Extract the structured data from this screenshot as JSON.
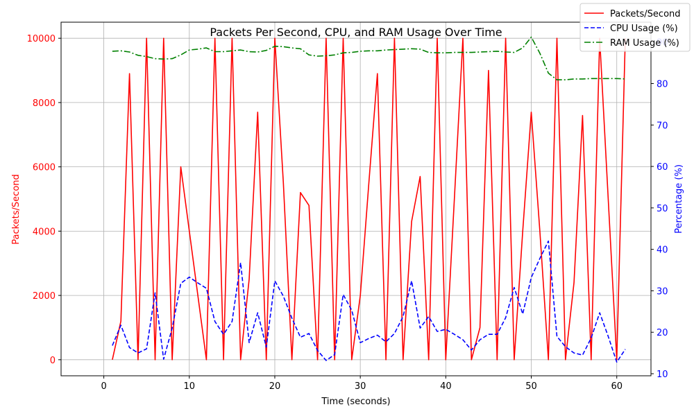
{
  "chart_data": {
    "type": "line",
    "title": "Packets Per Second, CPU, and RAM Usage Over Time",
    "xlabel": "Time (seconds)",
    "ylabel_left": "Packets/Second",
    "ylabel_right": "Percentage (%)",
    "xlim": [
      -5,
      64
    ],
    "ylim_left": [
      -500,
      10500
    ],
    "ylim_right": [
      9.5,
      94.8
    ],
    "x_ticks": [
      0,
      10,
      20,
      30,
      40,
      50,
      60
    ],
    "y_ticks_left": [
      0,
      2000,
      4000,
      6000,
      8000,
      10000
    ],
    "y_ticks_right": [
      10,
      20,
      30,
      40,
      50,
      60,
      70,
      80,
      90
    ],
    "grid": true,
    "legend_position": "top-right",
    "colors": {
      "packets": "#ff0000",
      "cpu": "#0000ff",
      "ram": "#008000",
      "grid": "#b0b0b0",
      "left_axis_text": "#ff0000",
      "right_axis_text": "#0000ff"
    },
    "x": [
      1,
      2,
      3,
      4,
      5,
      6,
      7,
      8,
      9,
      10,
      11,
      12,
      13,
      14,
      15,
      16,
      17,
      18,
      19,
      20,
      21,
      22,
      23,
      24,
      25,
      26,
      27,
      28,
      29,
      30,
      31,
      32,
      33,
      34,
      35,
      36,
      37,
      38,
      39,
      40,
      41,
      42,
      43,
      44,
      45,
      46,
      47,
      48,
      49,
      50,
      51,
      52,
      53,
      54,
      55,
      56,
      57,
      58,
      59,
      60,
      61
    ],
    "series": [
      {
        "name": "Packets/Second",
        "axis": "left",
        "style": "solid",
        "values": [
          0,
          1200,
          8900,
          0,
          10000,
          0,
          10000,
          0,
          6000,
          4000,
          2000,
          0,
          10000,
          0,
          10000,
          0,
          2500,
          7700,
          0,
          10000,
          5500,
          0,
          5200,
          4800,
          0,
          10000,
          0,
          10000,
          0,
          2000,
          5500,
          8900,
          0,
          10000,
          0,
          4300,
          5700,
          0,
          10000,
          0,
          5000,
          10000,
          0,
          1000,
          9000,
          0,
          10000,
          0,
          4000,
          7700,
          4000,
          0,
          10000,
          0,
          2400,
          7600,
          0,
          10000,
          5000,
          0,
          10000
        ]
      },
      {
        "name": "CPU Usage (%)",
        "axis": "right",
        "style": "dashed",
        "values": [
          16.8,
          21.7,
          16.3,
          15,
          16,
          29.5,
          13.5,
          21,
          31.8,
          33.3,
          31.9,
          30.6,
          22.6,
          19.5,
          22.6,
          36.8,
          17.5,
          24.7,
          16.4,
          32.4,
          28.7,
          23.4,
          18.8,
          19.7,
          15.6,
          13.2,
          14.6,
          29.1,
          25.3,
          17.5,
          18.5,
          19.3,
          17.7,
          19.7,
          23.8,
          32.4,
          21,
          23.8,
          20.2,
          20.7,
          19.5,
          18.2,
          15.7,
          18.2,
          19.5,
          19.5,
          23.5,
          30.8,
          24.4,
          33.2,
          37.8,
          42,
          19,
          16.5,
          15,
          14.5,
          18.6,
          24.7,
          19,
          12.8,
          15.9
        ]
      },
      {
        "name": "RAM Usage (%)",
        "axis": "right",
        "style": "dashdot",
        "values": [
          87.8,
          87.9,
          87.6,
          86.8,
          86.5,
          86,
          85.9,
          86,
          86.9,
          88.1,
          88.3,
          88.6,
          87.7,
          87.7,
          87.9,
          88.1,
          87.7,
          87.6,
          88,
          89,
          88.9,
          88.6,
          88.4,
          86.9,
          86.6,
          86.7,
          86.9,
          87.4,
          87.5,
          87.8,
          87.9,
          87.9,
          88.1,
          88.2,
          88.3,
          88.4,
          88.3,
          87.5,
          87.4,
          87.4,
          87.5,
          87.5,
          87.5,
          87.6,
          87.7,
          87.8,
          87.6,
          87.5,
          88.6,
          91.2,
          87.3,
          82.5,
          80.9,
          80.9,
          81.1,
          81.1,
          81.2,
          81.2,
          81.2,
          81.2,
          81.1
        ]
      }
    ]
  }
}
